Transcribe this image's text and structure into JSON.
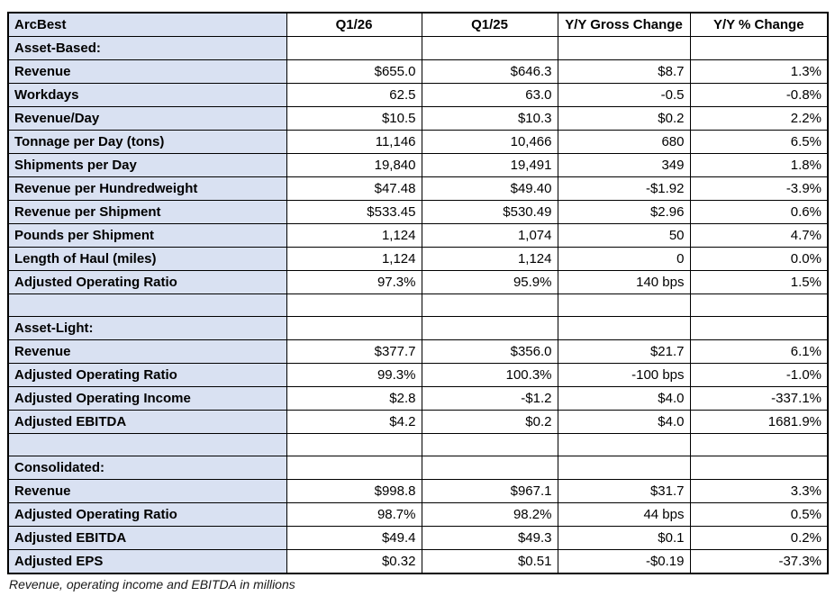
{
  "colors": {
    "label_bg": "#D9E1F2",
    "cell_bg": "#FFFFFF",
    "border": "#000000",
    "text": "#000000"
  },
  "footnote": "Revenue, operating income and EBITDA in millions",
  "table": {
    "columns": [
      "ArcBest",
      "Q1/26",
      "Q1/25",
      "Y/Y Gross Change",
      "Y/Y % Change"
    ],
    "rows": [
      {
        "type": "section",
        "label": "Asset-Based:",
        "values": [
          "",
          "",
          "",
          ""
        ]
      },
      {
        "type": "data",
        "label": "Revenue",
        "values": [
          "$655.0",
          "$646.3",
          "$8.7",
          "1.3%"
        ]
      },
      {
        "type": "data",
        "label": "Workdays",
        "values": [
          "62.5",
          "63.0",
          "-0.5",
          "-0.8%"
        ]
      },
      {
        "type": "data",
        "label": "Revenue/Day",
        "values": [
          "$10.5",
          "$10.3",
          "$0.2",
          "2.2%"
        ]
      },
      {
        "type": "data",
        "label": "Tonnage per Day (tons)",
        "values": [
          "11,146",
          "10,466",
          "680",
          "6.5%"
        ]
      },
      {
        "type": "data",
        "label": "Shipments per Day",
        "values": [
          "19,840",
          "19,491",
          "349",
          "1.8%"
        ]
      },
      {
        "type": "data",
        "label": "Revenue per Hundredweight",
        "values": [
          "$47.48",
          "$49.40",
          "-$1.92",
          "-3.9%"
        ]
      },
      {
        "type": "data",
        "label": "Revenue per Shipment",
        "values": [
          "$533.45",
          "$530.49",
          "$2.96",
          "0.6%"
        ]
      },
      {
        "type": "data",
        "label": "Pounds per Shipment",
        "values": [
          "1,124",
          "1,074",
          "50",
          "4.7%"
        ]
      },
      {
        "type": "data",
        "label": "Length of Haul (miles)",
        "values": [
          "1,124",
          "1,124",
          "0",
          "0.0%"
        ]
      },
      {
        "type": "data",
        "label": "Adjusted Operating Ratio",
        "values": [
          "97.3%",
          "95.9%",
          "140 bps",
          "1.5%"
        ]
      },
      {
        "type": "spacer",
        "label": "",
        "values": [
          "",
          "",
          "",
          ""
        ]
      },
      {
        "type": "section",
        "label": "Asset-Light:",
        "values": [
          "",
          "",
          "",
          ""
        ]
      },
      {
        "type": "data",
        "label": "Revenue",
        "values": [
          "$377.7",
          "$356.0",
          "$21.7",
          "6.1%"
        ]
      },
      {
        "type": "data",
        "label": "Adjusted Operating Ratio",
        "values": [
          "99.3%",
          "100.3%",
          "-100 bps",
          "-1.0%"
        ]
      },
      {
        "type": "data",
        "label": "Adjusted Operating Income",
        "values": [
          "$2.8",
          "-$1.2",
          "$4.0",
          "-337.1%"
        ]
      },
      {
        "type": "data",
        "label": "Adjusted EBITDA",
        "values": [
          "$4.2",
          "$0.2",
          "$4.0",
          "1681.9%"
        ]
      },
      {
        "type": "spacer",
        "label": "",
        "values": [
          "",
          "",
          "",
          ""
        ]
      },
      {
        "type": "section",
        "label": "Consolidated:",
        "values": [
          "",
          "",
          "",
          ""
        ]
      },
      {
        "type": "data",
        "label": "Revenue",
        "values": [
          "$998.8",
          "$967.1",
          "$31.7",
          "3.3%"
        ]
      },
      {
        "type": "data",
        "label": "Adjusted Operating Ratio",
        "values": [
          "98.7%",
          "98.2%",
          "44 bps",
          "0.5%"
        ]
      },
      {
        "type": "data",
        "label": "Adjusted EBITDA",
        "values": [
          "$49.4",
          "$49.3",
          "$0.1",
          "0.2%"
        ]
      },
      {
        "type": "data",
        "label": "Adjusted EPS",
        "values": [
          "$0.32",
          "$0.51",
          "-$0.19",
          "-37.3%"
        ]
      }
    ]
  },
  "chart_data": {
    "type": "table",
    "title": "ArcBest",
    "columns": [
      "ArcBest",
      "Q1/26",
      "Q1/25",
      "Y/Y Gross Change",
      "Y/Y % Change"
    ],
    "sections": [
      {
        "name": "Asset-Based:",
        "rows": [
          {
            "metric": "Revenue",
            "q1_26": "$655.0",
            "q1_25": "$646.3",
            "yy_gross_change": "$8.7",
            "yy_pct_change": "1.3%"
          },
          {
            "metric": "Workdays",
            "q1_26": "62.5",
            "q1_25": "63.0",
            "yy_gross_change": "-0.5",
            "yy_pct_change": "-0.8%"
          },
          {
            "metric": "Revenue/Day",
            "q1_26": "$10.5",
            "q1_25": "$10.3",
            "yy_gross_change": "$0.2",
            "yy_pct_change": "2.2%"
          },
          {
            "metric": "Tonnage per Day (tons)",
            "q1_26": "11,146",
            "q1_25": "10,466",
            "yy_gross_change": "680",
            "yy_pct_change": "6.5%"
          },
          {
            "metric": "Shipments per Day",
            "q1_26": "19,840",
            "q1_25": "19,491",
            "yy_gross_change": "349",
            "yy_pct_change": "1.8%"
          },
          {
            "metric": "Revenue per Hundredweight",
            "q1_26": "$47.48",
            "q1_25": "$49.40",
            "yy_gross_change": "-$1.92",
            "yy_pct_change": "-3.9%"
          },
          {
            "metric": "Revenue per Shipment",
            "q1_26": "$533.45",
            "q1_25": "$530.49",
            "yy_gross_change": "$2.96",
            "yy_pct_change": "0.6%"
          },
          {
            "metric": "Pounds per Shipment",
            "q1_26": "1,124",
            "q1_25": "1,074",
            "yy_gross_change": "50",
            "yy_pct_change": "4.7%"
          },
          {
            "metric": "Length of Haul (miles)",
            "q1_26": "1,124",
            "q1_25": "1,124",
            "yy_gross_change": "0",
            "yy_pct_change": "0.0%"
          },
          {
            "metric": "Adjusted Operating Ratio",
            "q1_26": "97.3%",
            "q1_25": "95.9%",
            "yy_gross_change": "140 bps",
            "yy_pct_change": "1.5%"
          }
        ]
      },
      {
        "name": "Asset-Light:",
        "rows": [
          {
            "metric": "Revenue",
            "q1_26": "$377.7",
            "q1_25": "$356.0",
            "yy_gross_change": "$21.7",
            "yy_pct_change": "6.1%"
          },
          {
            "metric": "Adjusted Operating Ratio",
            "q1_26": "99.3%",
            "q1_25": "100.3%",
            "yy_gross_change": "-100 bps",
            "yy_pct_change": "-1.0%"
          },
          {
            "metric": "Adjusted Operating Income",
            "q1_26": "$2.8",
            "q1_25": "-$1.2",
            "yy_gross_change": "$4.0",
            "yy_pct_change": "-337.1%"
          },
          {
            "metric": "Adjusted EBITDA",
            "q1_26": "$4.2",
            "q1_25": "$0.2",
            "yy_gross_change": "$4.0",
            "yy_pct_change": "1681.9%"
          }
        ]
      },
      {
        "name": "Consolidated:",
        "rows": [
          {
            "metric": "Revenue",
            "q1_26": "$998.8",
            "q1_25": "$967.1",
            "yy_gross_change": "$31.7",
            "yy_pct_change": "3.3%"
          },
          {
            "metric": "Adjusted Operating Ratio",
            "q1_26": "98.7%",
            "q1_25": "98.2%",
            "yy_gross_change": "44 bps",
            "yy_pct_change": "0.5%"
          },
          {
            "metric": "Adjusted EBITDA",
            "q1_26": "$49.4",
            "q1_25": "$49.3",
            "yy_gross_change": "$0.1",
            "yy_pct_change": "0.2%"
          },
          {
            "metric": "Adjusted EPS",
            "q1_26": "$0.32",
            "q1_25": "$0.51",
            "yy_gross_change": "-$0.19",
            "yy_pct_change": "-37.3%"
          }
        ]
      }
    ],
    "footnote": "Revenue, operating income and EBITDA in millions"
  }
}
